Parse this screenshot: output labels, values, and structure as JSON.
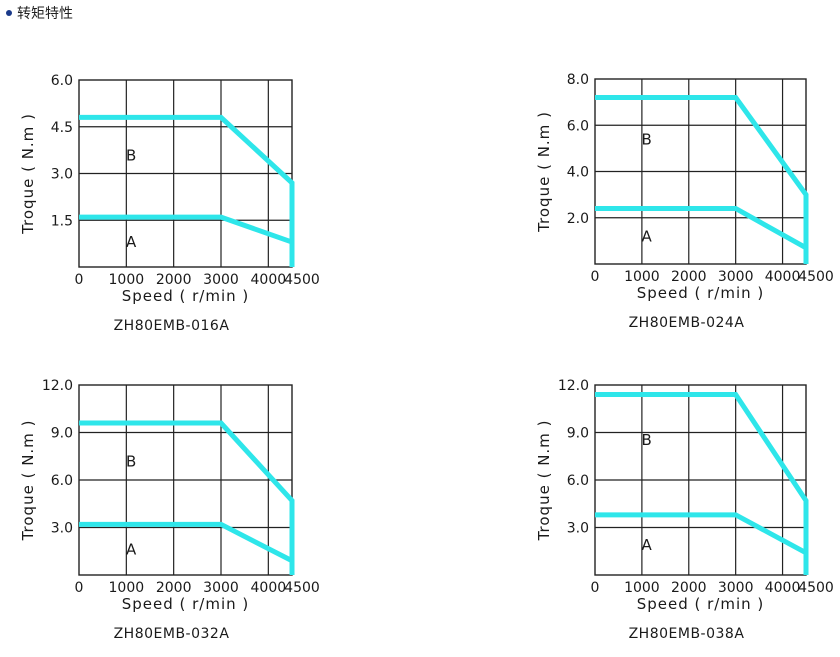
{
  "heading": {
    "text": "转矩特性"
  },
  "colors": {
    "curve": "#2ee6ea",
    "grid": "#222222",
    "bullet": "#1a3a8a"
  },
  "chart_data": [
    {
      "type": "line",
      "title": "ZH80EMB-016A",
      "xlabel": "Speed ( r/min )",
      "ylabel": "Troque ( N.m )",
      "xlim": [
        0,
        4500
      ],
      "ylim": [
        0,
        6.0
      ],
      "x_ticks": [
        0,
        1000,
        2000,
        3000,
        4000,
        4500
      ],
      "x_tick_labels": [
        "0",
        "1000",
        "2000",
        "3000",
        "4000",
        "4500"
      ],
      "y_ticks": [
        1.5,
        3.0,
        4.5,
        6.0
      ],
      "y_tick_labels": [
        "1.5",
        "3.0",
        "4.5",
        "6.0"
      ],
      "region_labels": [
        "A",
        "B"
      ],
      "grid": true,
      "series": [
        {
          "x": [
            0,
            3000,
            4500
          ],
          "y": [
            1.6,
            1.6,
            0.8
          ]
        },
        {
          "x": [
            0,
            3000,
            4500,
            4500
          ],
          "y": [
            4.8,
            4.8,
            2.7,
            0
          ]
        }
      ]
    },
    {
      "type": "line",
      "title": "ZH80EMB-024A",
      "xlabel": "Speed ( r/min )",
      "ylabel": "Troque ( N.m )",
      "xlim": [
        0,
        4500
      ],
      "ylim": [
        0,
        8.0
      ],
      "x_ticks": [
        0,
        1000,
        2000,
        3000,
        4000,
        4500
      ],
      "x_tick_labels": [
        "0",
        "1000",
        "2000",
        "3000",
        "4000",
        "4500"
      ],
      "y_ticks": [
        2.0,
        4.0,
        6.0,
        8.0
      ],
      "y_tick_labels": [
        "2.0",
        "4.0",
        "6.0",
        "8.0"
      ],
      "region_labels": [
        "A",
        "B"
      ],
      "grid": true,
      "series": [
        {
          "x": [
            0,
            3000,
            4500
          ],
          "y": [
            2.4,
            2.4,
            0.7
          ]
        },
        {
          "x": [
            0,
            3000,
            4500,
            4500
          ],
          "y": [
            7.2,
            7.2,
            3.0,
            0
          ]
        }
      ]
    },
    {
      "type": "line",
      "title": "ZH80EMB-032A",
      "xlabel": "Speed ( r/min )",
      "ylabel": "Troque ( N.m )",
      "xlim": [
        0,
        4500
      ],
      "ylim": [
        0,
        12.0
      ],
      "x_ticks": [
        0,
        1000,
        2000,
        3000,
        4000,
        4500
      ],
      "x_tick_labels": [
        "0",
        "1000",
        "2000",
        "3000",
        "4000",
        "4500"
      ],
      "y_ticks": [
        3.0,
        6.0,
        9.0,
        12.0
      ],
      "y_tick_labels": [
        "3.0",
        "6.0",
        "9.0",
        "12.0"
      ],
      "region_labels": [
        "A",
        "B"
      ],
      "grid": true,
      "series": [
        {
          "x": [
            0,
            3000,
            4500
          ],
          "y": [
            3.2,
            3.2,
            0.9
          ]
        },
        {
          "x": [
            0,
            3000,
            4500,
            4500
          ],
          "y": [
            9.6,
            9.6,
            4.7,
            0
          ]
        }
      ]
    },
    {
      "type": "line",
      "title": "ZH80EMB-038A",
      "xlabel": "Speed ( r/min )",
      "ylabel": "Troque ( N.m )",
      "xlim": [
        0,
        4500
      ],
      "ylim": [
        0,
        12.0
      ],
      "x_ticks": [
        0,
        1000,
        2000,
        3000,
        4000,
        4500
      ],
      "x_tick_labels": [
        "0",
        "1000",
        "2000",
        "3000",
        "4000",
        "4500"
      ],
      "y_ticks": [
        3.0,
        6.0,
        9.0,
        12.0
      ],
      "y_tick_labels": [
        "3.0",
        "6.0",
        "9.0",
        "12.0"
      ],
      "region_labels": [
        "A",
        "B"
      ],
      "grid": true,
      "series": [
        {
          "x": [
            0,
            3000,
            4500
          ],
          "y": [
            3.8,
            3.8,
            1.4
          ]
        },
        {
          "x": [
            0,
            3000,
            4500,
            4500
          ],
          "y": [
            11.4,
            11.4,
            4.7,
            0
          ]
        }
      ]
    }
  ]
}
